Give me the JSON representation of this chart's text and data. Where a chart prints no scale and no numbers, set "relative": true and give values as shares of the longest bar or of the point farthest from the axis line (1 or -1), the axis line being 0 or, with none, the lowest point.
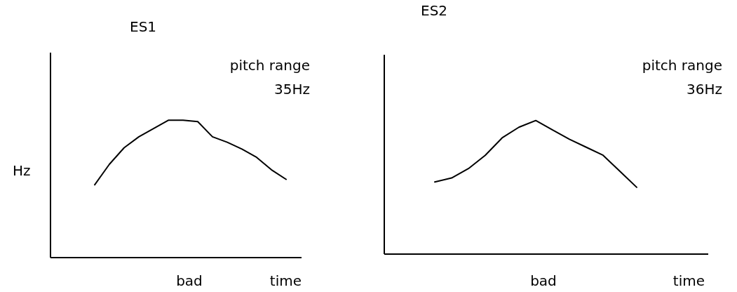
{
  "chart_data": [
    {
      "type": "line",
      "title": "ES1",
      "ylabel": "Hz",
      "xlabel": "time",
      "relative": true,
      "annotations": [
        "bad",
        "pitch range\n35Hz"
      ],
      "categories": [
        null,
        null,
        null,
        null,
        null,
        null,
        null,
        null,
        null,
        null,
        null,
        null,
        null,
        null,
        null,
        null,
        null
      ],
      "series": [
        {
          "color": "#000000",
          "values": [
            null,
            null,
            0.53,
            0.68,
            0.8,
            0.88,
            0.94,
            1,
            1,
            0.99,
            0.88,
            0.84,
            0.79,
            0.73,
            0.64,
            0.57,
            null
          ]
        }
      ]
    },
    {
      "type": "line",
      "title": "ES2",
      "xlabel": "time",
      "relative": true,
      "annotations": [
        "bad",
        "pitch range\n36Hz"
      ],
      "categories": [
        null,
        null,
        null,
        null,
        null,
        null,
        null,
        null,
        null,
        null,
        null,
        null,
        null,
        null,
        null,
        null,
        null,
        null,
        null
      ],
      "series": [
        {
          "color": "#000000",
          "values": [
            null,
            null,
            0.54,
            0.57,
            0.64,
            0.74,
            0.87,
            0.95,
            1,
            0.93,
            0.86,
            0.8,
            0.74,
            0.62,
            0.5,
            null,
            null,
            null,
            null
          ]
        }
      ]
    }
  ]
}
